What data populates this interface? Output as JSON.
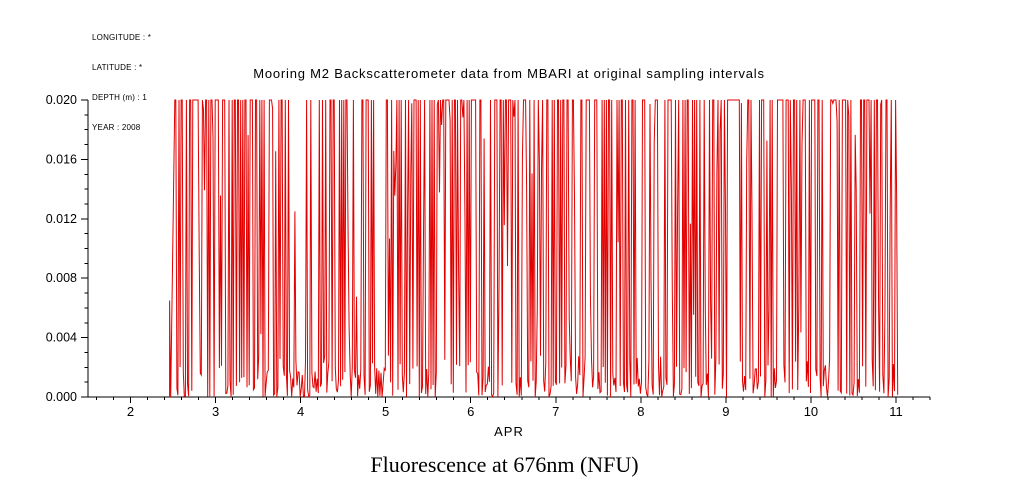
{
  "metadata": {
    "longitude": "LONGITUDE : *",
    "latitude": "LATITUDE : *",
    "depth": "DEPTH (m) : 1",
    "year": "YEAR : 2008"
  },
  "chart_data": {
    "type": "line",
    "title": "Mooring M2 Backscatterometer data from MBARI at original sampling intervals",
    "xlabel": "APR",
    "ylabel": "",
    "caption": "Fluorescence at 676nm (NFU)",
    "grid": false,
    "legend": false,
    "axis_color": "#000000",
    "series_color": "#e10000",
    "x_axis": {
      "min": 1.5,
      "max": 11.4,
      "major_ticks": [
        2,
        3,
        4,
        5,
        6,
        7,
        8,
        9,
        10,
        11
      ],
      "minor_step": 0.2
    },
    "y_axis": {
      "min": 0.0,
      "max": 0.02,
      "major_ticks": [
        0.0,
        0.004,
        0.008,
        0.012,
        0.016,
        0.02
      ],
      "tick_labels": [
        "0.000",
        "0.004",
        "0.008",
        "0.012",
        "0.016",
        "0.020"
      ],
      "minor_step": 0.001
    },
    "series": {
      "name": "fluorescence-676nm",
      "description": "High-frequency fluorescence samples oscillating between ~0 and the 0.020 clip level, from ~2.45 Apr to ~11.0 Apr 2008; spikes mostly saturate at 0.020 with quiet baseline wiggle below 0.003",
      "x_start": 2.52,
      "x_end": 11.02,
      "samples_per_unit": 80,
      "seed": 42008,
      "clip_max": 0.02,
      "baseline_max": 0.0028,
      "spike_top_frac": 0.78,
      "lead_spike": {
        "x": 2.46,
        "value": 0.0065
      },
      "density_envelope": [
        {
          "x": 2.45,
          "p": 0.12
        },
        {
          "x": 2.55,
          "p": 0.5
        },
        {
          "x": 3.0,
          "p": 0.58
        },
        {
          "x": 3.45,
          "p": 0.52
        },
        {
          "x": 3.8,
          "p": 0.42
        },
        {
          "x": 4.0,
          "p": 0.3
        },
        {
          "x": 4.4,
          "p": 0.38
        },
        {
          "x": 4.8,
          "p": 0.33
        },
        {
          "x": 5.2,
          "p": 0.4
        },
        {
          "x": 5.55,
          "p": 0.6
        },
        {
          "x": 5.9,
          "p": 0.5
        },
        {
          "x": 6.2,
          "p": 0.42
        },
        {
          "x": 6.55,
          "p": 0.68
        },
        {
          "x": 6.85,
          "p": 0.6
        },
        {
          "x": 7.1,
          "p": 0.42
        },
        {
          "x": 7.5,
          "p": 0.52
        },
        {
          "x": 7.9,
          "p": 0.4
        },
        {
          "x": 8.3,
          "p": 0.48
        },
        {
          "x": 8.7,
          "p": 0.55
        },
        {
          "x": 9.05,
          "p": 0.78
        },
        {
          "x": 9.3,
          "p": 0.35
        },
        {
          "x": 9.6,
          "p": 0.55
        },
        {
          "x": 10.0,
          "p": 0.58
        },
        {
          "x": 10.3,
          "p": 0.42
        },
        {
          "x": 10.7,
          "p": 0.6
        },
        {
          "x": 11.0,
          "p": 0.35
        }
      ]
    }
  }
}
